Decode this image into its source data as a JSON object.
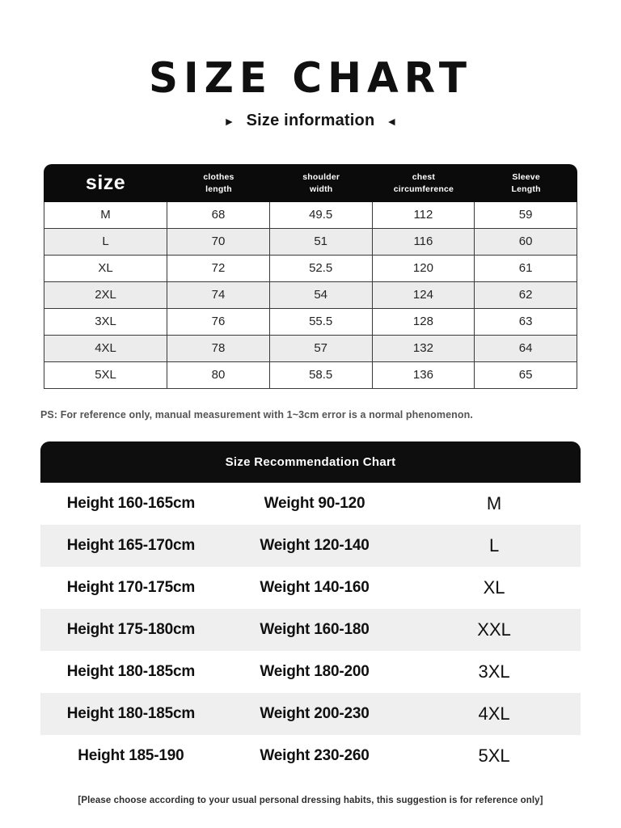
{
  "page": {
    "title": "SIZE CHART",
    "subtitle": "Size information",
    "subtitle_left_arrow": "►",
    "subtitle_right_arrow": "◄",
    "ps_note": "PS: For reference only, manual measurement with 1~3cm error is a normal phenomenon.",
    "footer_note": "[Please choose according to your usual personal dressing habits, this suggestion is for reference only]"
  },
  "colors": {
    "header_bg": "#0b0b0b",
    "row_alt_bg": "#ececec",
    "table_border": "#3a3a3a",
    "text_primary": "#1a1a1a",
    "text_muted": "#545454"
  },
  "size_table": {
    "columns": [
      "size",
      "clothes\nlength",
      "shoulder\nwidth",
      "chest\ncircumference",
      "Sleeve\nLength"
    ],
    "rows": [
      {
        "size": "M",
        "clothes_length": "68",
        "shoulder_width": "49.5",
        "chest": "112",
        "sleeve": "59"
      },
      {
        "size": "L",
        "clothes_length": "70",
        "shoulder_width": "51",
        "chest": "116",
        "sleeve": "60"
      },
      {
        "size": "XL",
        "clothes_length": "72",
        "shoulder_width": "52.5",
        "chest": "120",
        "sleeve": "61"
      },
      {
        "size": "2XL",
        "clothes_length": "74",
        "shoulder_width": "54",
        "chest": "124",
        "sleeve": "62"
      },
      {
        "size": "3XL",
        "clothes_length": "76",
        "shoulder_width": "55.5",
        "chest": "128",
        "sleeve": "63"
      },
      {
        "size": "4XL",
        "clothes_length": "78",
        "shoulder_width": "57",
        "chest": "132",
        "sleeve": "64"
      },
      {
        "size": "5XL",
        "clothes_length": "80",
        "shoulder_width": "58.5",
        "chest": "136",
        "sleeve": "65"
      }
    ]
  },
  "recommendation": {
    "title": "Size Recommendation Chart",
    "rows": [
      {
        "height": "Height 160-165cm",
        "weight": "Weight 90-120",
        "size": "M"
      },
      {
        "height": "Height 165-170cm",
        "weight": "Weight 120-140",
        "size": "L"
      },
      {
        "height": "Height 170-175cm",
        "weight": "Weight 140-160",
        "size": "XL"
      },
      {
        "height": "Height 175-180cm",
        "weight": "Weight 160-180",
        "size": "XXL"
      },
      {
        "height": "Height 180-185cm",
        "weight": "Weight 180-200",
        "size": "3XL"
      },
      {
        "height": "Height 180-185cm",
        "weight": "Weight 200-230",
        "size": "4XL"
      },
      {
        "height": "Height 185-190",
        "weight": "Weight 230-260",
        "size": "5XL"
      }
    ]
  }
}
